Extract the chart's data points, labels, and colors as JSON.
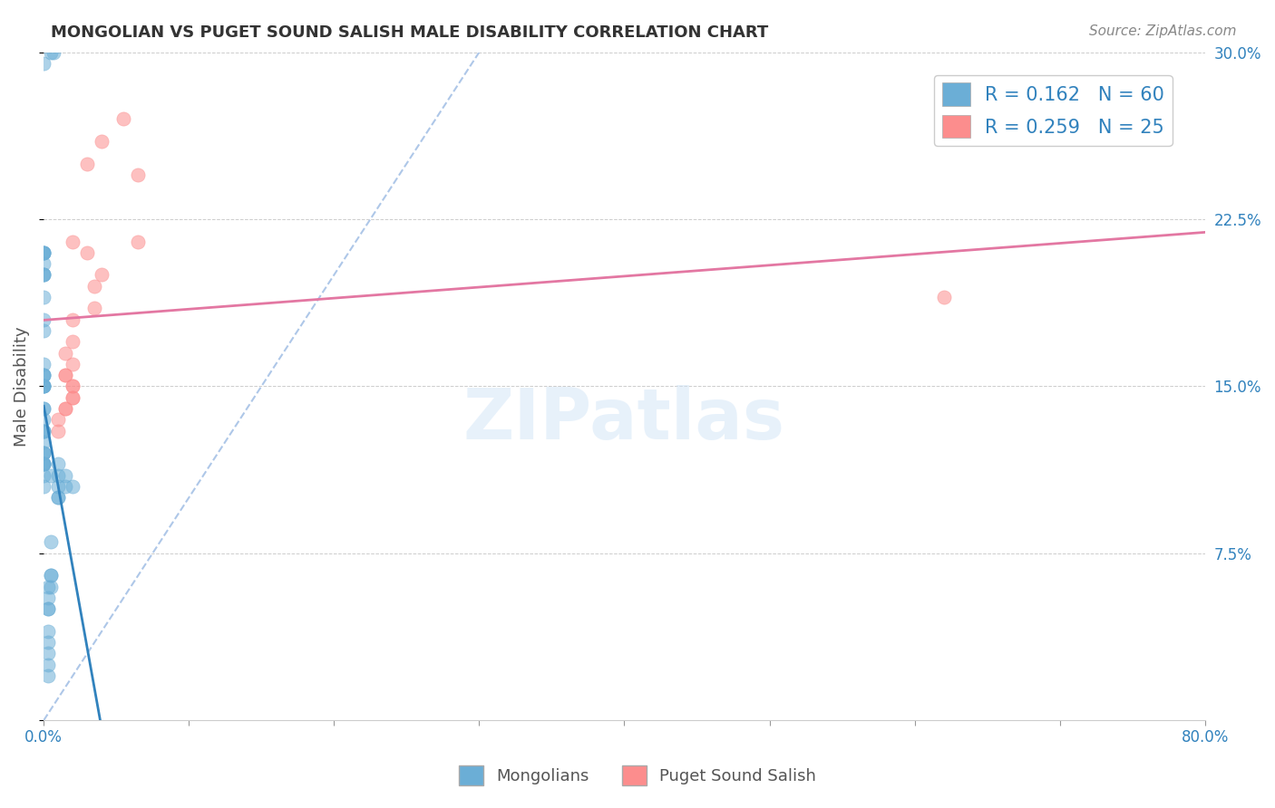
{
  "title": "MONGOLIAN VS PUGET SOUND SALISH MALE DISABILITY CORRELATION CHART",
  "source": "Source: ZipAtlas.com",
  "xlabel_bottom": [
    "Mongolians",
    "Puget Sound Salish"
  ],
  "ylabel": "Male Disability",
  "xlim": [
    0.0,
    0.8
  ],
  "ylim": [
    0.0,
    0.3
  ],
  "x_ticks": [
    0.0,
    0.1,
    0.2,
    0.3,
    0.4,
    0.5,
    0.6,
    0.7,
    0.8
  ],
  "x_tick_labels": [
    "0.0%",
    "",
    "",
    "",
    "",
    "",
    "",
    "",
    "80.0%"
  ],
  "y_ticks": [
    0.0,
    0.075,
    0.15,
    0.225,
    0.3
  ],
  "y_tick_labels_right": [
    "",
    "7.5%",
    "15.0%",
    "22.5%",
    "30.0%"
  ],
  "mongolian_color": "#6baed6",
  "puget_color": "#fc8d8d",
  "mongolian_R": 0.162,
  "mongolian_N": 60,
  "puget_R": 0.259,
  "puget_N": 25,
  "diagonal_line_color": "#aec7e8",
  "mongolian_line_color": "#3182bd",
  "puget_line_color": "#e377a2",
  "watermark": "ZIPatlas",
  "mongolian_x": [
    0.005,
    0.007,
    0.0,
    0.0,
    0.0,
    0.0,
    0.0,
    0.0,
    0.0,
    0.0,
    0.0,
    0.0,
    0.0,
    0.0,
    0.0,
    0.0,
    0.0,
    0.0,
    0.0,
    0.0,
    0.0,
    0.0,
    0.0,
    0.0,
    0.0,
    0.0,
    0.0,
    0.0,
    0.0,
    0.0,
    0.0,
    0.0,
    0.0,
    0.0,
    0.0,
    0.0,
    0.005,
    0.0,
    0.0,
    0.01,
    0.01,
    0.01,
    0.015,
    0.02,
    0.015,
    0.01,
    0.01,
    0.005,
    0.005,
    0.005,
    0.005,
    0.003,
    0.003,
    0.003,
    0.003,
    0.003,
    0.003,
    0.003,
    0.003,
    0.003
  ],
  "mongolian_y": [
    0.3,
    0.3,
    0.295,
    0.21,
    0.21,
    0.21,
    0.21,
    0.205,
    0.2,
    0.2,
    0.2,
    0.19,
    0.18,
    0.175,
    0.16,
    0.155,
    0.155,
    0.155,
    0.15,
    0.15,
    0.15,
    0.15,
    0.14,
    0.14,
    0.135,
    0.13,
    0.13,
    0.13,
    0.125,
    0.12,
    0.12,
    0.12,
    0.115,
    0.115,
    0.115,
    0.115,
    0.11,
    0.11,
    0.105,
    0.1,
    0.1,
    0.105,
    0.105,
    0.105,
    0.11,
    0.11,
    0.115,
    0.08,
    0.065,
    0.065,
    0.06,
    0.06,
    0.055,
    0.05,
    0.05,
    0.04,
    0.035,
    0.03,
    0.025,
    0.02
  ],
  "puget_x": [
    0.065,
    0.055,
    0.04,
    0.03,
    0.065,
    0.02,
    0.03,
    0.04,
    0.035,
    0.035,
    0.02,
    0.02,
    0.015,
    0.02,
    0.015,
    0.015,
    0.02,
    0.02,
    0.02,
    0.02,
    0.015,
    0.015,
    0.01,
    0.01,
    0.62
  ],
  "puget_y": [
    0.245,
    0.27,
    0.26,
    0.25,
    0.215,
    0.215,
    0.21,
    0.2,
    0.195,
    0.185,
    0.18,
    0.17,
    0.165,
    0.16,
    0.155,
    0.155,
    0.15,
    0.15,
    0.145,
    0.145,
    0.14,
    0.14,
    0.135,
    0.13,
    0.19
  ]
}
